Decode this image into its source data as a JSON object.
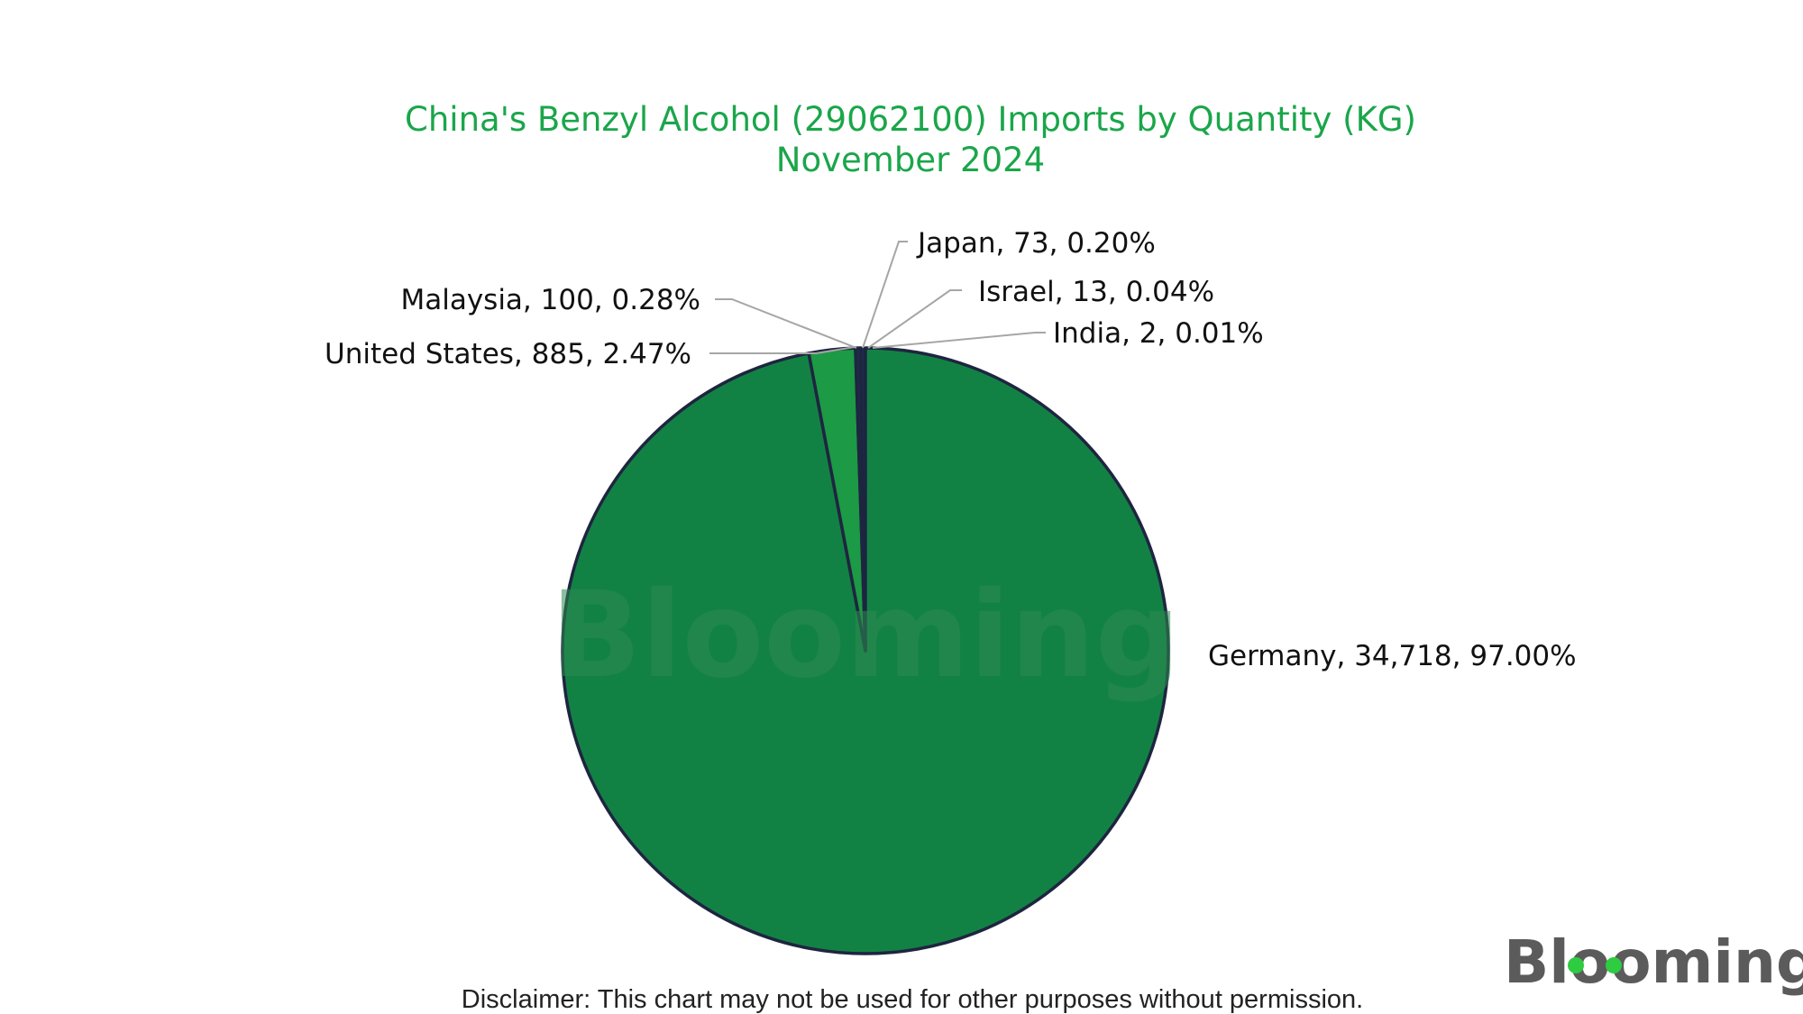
{
  "chart_data": {
    "type": "pie",
    "title": "China's Benzyl Alcohol (29062100) Imports by Quantity (KG)",
    "subtitle": "November 2024",
    "slices": [
      {
        "name": "Germany",
        "value": 34718,
        "percent": "97.00%",
        "label": "Germany, 34,718, 97.00%",
        "color": "#128244"
      },
      {
        "name": "United States",
        "value": 885,
        "percent": "2.47%",
        "label": "United States, 885, 2.47%",
        "color": "#1c9a45"
      },
      {
        "name": "Malaysia",
        "value": 100,
        "percent": "0.28%",
        "label": "Malaysia, 100, 0.28%",
        "color": "#1e2b48"
      },
      {
        "name": "Japan",
        "value": 73,
        "percent": "0.20%",
        "label": "Japan, 73, 0.20%",
        "color": "#1e2b48"
      },
      {
        "name": "Israel",
        "value": 13,
        "percent": "0.04%",
        "label": "Israel, 13, 0.04%",
        "color": "#1e2b48"
      },
      {
        "name": "India",
        "value": 2,
        "percent": "0.01%",
        "label": "India, 2, 0.01%",
        "color": "#1e2b48"
      }
    ],
    "start_angle": "12 o'clock",
    "direction": "counterclockwise from Germany's right edge",
    "edge_color": "#1e2540",
    "leader_line_color": "#a6a6a6",
    "legend": "none (labels beside slices)"
  },
  "watermark": "Blooming",
  "logo": "Blooming",
  "disclaimer": "Disclaimer: This chart may not be used for other purposes without permission."
}
